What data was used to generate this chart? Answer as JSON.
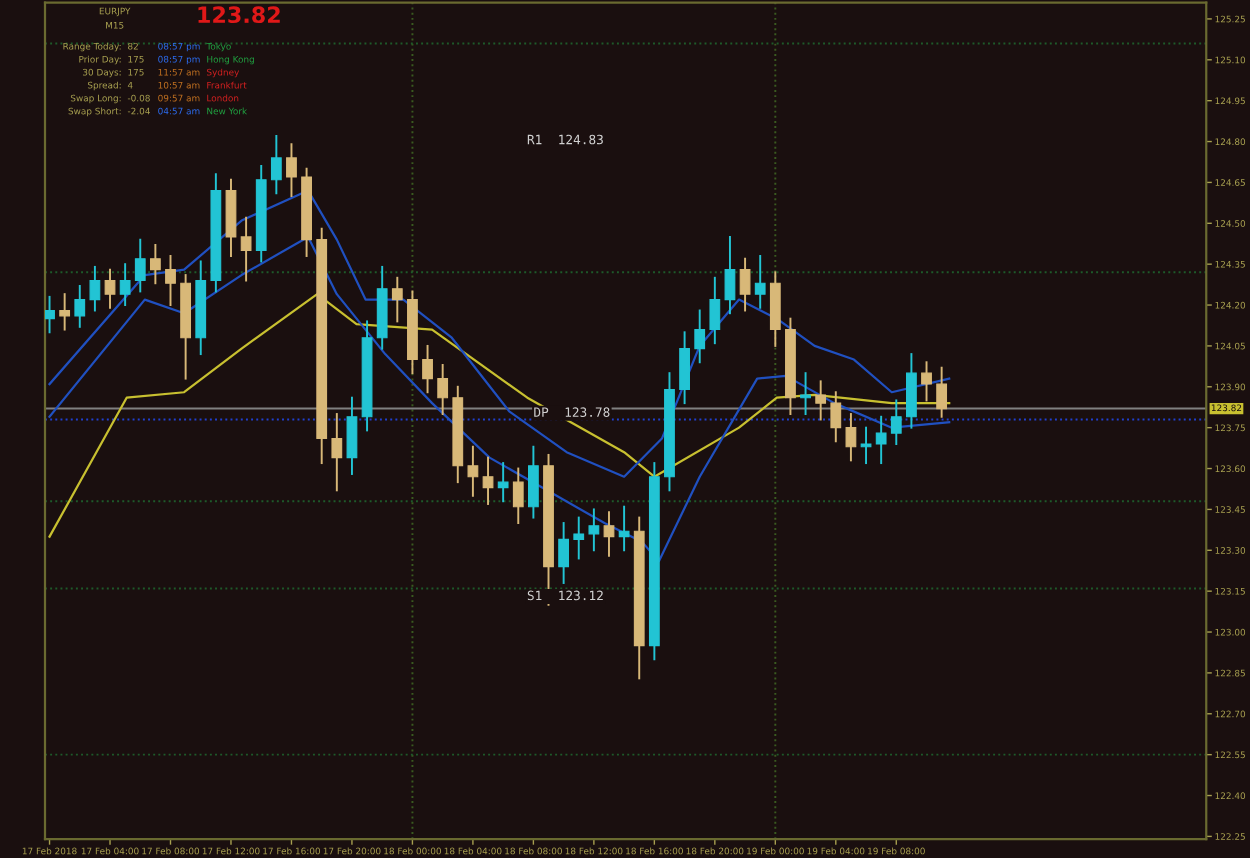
{
  "chart_data": {
    "type": "candlestick",
    "x": [
      "2018-02-17T00:00",
      "2018-02-17T01:00",
      "2018-02-17T02:00",
      "2018-02-17T03:00",
      "2018-02-17T04:00",
      "2018-02-17T05:00",
      "2018-02-17T06:00",
      "2018-02-17T07:00",
      "2018-02-17T08:00",
      "2018-02-17T09:00",
      "2018-02-17T10:00",
      "2018-02-17T11:00",
      "2018-02-17T12:00",
      "2018-02-17T13:00",
      "2018-02-17T14:00",
      "2018-02-17T15:00",
      "2018-02-17T16:00",
      "2018-02-17T17:00",
      "2018-02-17T18:00",
      "2018-02-17T19:00",
      "2018-02-17T20:00",
      "2018-02-17T21:00",
      "2018-02-17T22:00",
      "2018-02-17T23:00",
      "2018-02-18T00:00",
      "2018-02-18T01:00",
      "2018-02-18T02:00",
      "2018-02-18T03:00",
      "2018-02-18T04:00",
      "2018-02-18T05:00",
      "2018-02-18T06:00",
      "2018-02-18T07:00",
      "2018-02-18T08:00",
      "2018-02-18T09:00",
      "2018-02-18T10:00",
      "2018-02-18T11:00",
      "2018-02-18T12:00",
      "2018-02-18T13:00",
      "2018-02-18T14:00",
      "2018-02-18T15:00",
      "2018-02-18T16:00",
      "2018-02-18T17:00",
      "2018-02-18T18:00",
      "2018-02-18T19:00",
      "2018-02-18T20:00",
      "2018-02-18T21:00",
      "2018-02-18T22:00",
      "2018-02-18T23:00",
      "2018-02-19T00:00",
      "2018-02-19T01:00",
      "2018-02-19T02:00",
      "2018-02-19T03:00",
      "2018-02-19T04:00",
      "2018-02-19T05:00",
      "2018-02-19T06:00",
      "2018-02-19T07:00",
      "2018-02-19T08:00",
      "2018-02-19T09:00",
      "2018-02-19T10:00",
      "2018-02-19T11:00"
    ],
    "ohlc": [
      [
        124.15,
        124.23,
        124.1,
        124.18
      ],
      [
        124.18,
        124.24,
        124.11,
        124.16
      ],
      [
        124.16,
        124.27,
        124.12,
        124.22
      ],
      [
        124.22,
        124.34,
        124.18,
        124.29
      ],
      [
        124.29,
        124.33,
        124.19,
        124.24
      ],
      [
        124.24,
        124.35,
        124.2,
        124.29
      ],
      [
        124.29,
        124.44,
        124.25,
        124.37
      ],
      [
        124.37,
        124.42,
        124.28,
        124.33
      ],
      [
        124.33,
        124.38,
        124.2,
        124.28
      ],
      [
        124.28,
        124.31,
        123.93,
        124.08
      ],
      [
        124.08,
        124.36,
        124.02,
        124.29
      ],
      [
        124.29,
        124.68,
        124.25,
        124.62
      ],
      [
        124.62,
        124.66,
        124.38,
        124.45
      ],
      [
        124.45,
        124.52,
        124.29,
        124.4
      ],
      [
        124.4,
        124.71,
        124.36,
        124.66
      ],
      [
        124.66,
        124.82,
        124.61,
        124.74
      ],
      [
        124.74,
        124.79,
        124.6,
        124.67
      ],
      [
        124.67,
        124.7,
        124.38,
        124.44
      ],
      [
        124.44,
        124.48,
        123.62,
        123.71
      ],
      [
        123.71,
        123.8,
        123.52,
        123.64
      ],
      [
        123.64,
        123.86,
        123.58,
        123.79
      ],
      [
        123.79,
        124.14,
        123.74,
        124.08
      ],
      [
        124.08,
        124.34,
        124.04,
        124.26
      ],
      [
        124.26,
        124.3,
        124.14,
        124.22
      ],
      [
        124.22,
        124.25,
        123.95,
        124.0
      ],
      [
        124.0,
        124.05,
        123.88,
        123.93
      ],
      [
        123.93,
        123.98,
        123.8,
        123.86
      ],
      [
        123.86,
        123.9,
        123.55,
        123.61
      ],
      [
        123.61,
        123.68,
        123.5,
        123.57
      ],
      [
        123.57,
        123.64,
        123.47,
        123.53
      ],
      [
        123.53,
        123.62,
        123.48,
        123.55
      ],
      [
        123.55,
        123.6,
        123.4,
        123.46
      ],
      [
        123.46,
        123.68,
        123.42,
        123.61
      ],
      [
        123.61,
        123.65,
        123.1,
        123.24
      ],
      [
        123.24,
        123.4,
        123.18,
        123.34
      ],
      [
        123.34,
        123.42,
        123.27,
        123.36
      ],
      [
        123.36,
        123.45,
        123.3,
        123.39
      ],
      [
        123.39,
        123.44,
        123.28,
        123.35
      ],
      [
        123.35,
        123.46,
        123.3,
        123.37
      ],
      [
        123.37,
        123.42,
        122.83,
        122.95
      ],
      [
        122.95,
        123.62,
        122.9,
        123.57
      ],
      [
        123.57,
        123.95,
        123.52,
        123.89
      ],
      [
        123.89,
        124.1,
        123.84,
        124.04
      ],
      [
        124.04,
        124.18,
        123.99,
        124.11
      ],
      [
        124.11,
        124.3,
        124.06,
        124.22
      ],
      [
        124.22,
        124.45,
        124.17,
        124.33
      ],
      [
        124.33,
        124.37,
        124.18,
        124.24
      ],
      [
        124.24,
        124.38,
        124.19,
        124.28
      ],
      [
        124.28,
        124.32,
        124.05,
        124.11
      ],
      [
        124.11,
        124.15,
        123.8,
        123.86
      ],
      [
        123.86,
        123.95,
        123.8,
        123.87
      ],
      [
        123.87,
        123.92,
        123.78,
        123.84
      ],
      [
        123.84,
        123.88,
        123.7,
        123.75
      ],
      [
        123.75,
        123.8,
        123.63,
        123.68
      ],
      [
        123.68,
        123.75,
        123.62,
        123.69
      ],
      [
        123.69,
        123.79,
        123.62,
        123.73
      ],
      [
        123.73,
        123.85,
        123.69,
        123.79
      ],
      [
        123.79,
        124.02,
        123.75,
        123.95
      ],
      [
        123.95,
        123.99,
        123.85,
        123.91
      ],
      [
        123.91,
        123.97,
        123.79,
        123.82
      ]
    ],
    "colors": [
      "#22c4d4",
      "#d8b878",
      "#22c4d4",
      "#22c4d4",
      "#d8b878",
      "#22c4d4",
      "#22c4d4",
      "#d8b878",
      "#d8b878",
      "#d8b878",
      "#22c4d4",
      "#22c4d4",
      "#d8b878",
      "#d8b878",
      "#22c4d4",
      "#22c4d4",
      "#d8b878",
      "#d8b878",
      "#d8b878",
      "#d8b878",
      "#22c4d4",
      "#22c4d4",
      "#22c4d4",
      "#d8b878",
      "#d8b878",
      "#d8b878",
      "#d8b878",
      "#d8b878",
      "#d8b878",
      "#d8b878",
      "#22c4d4",
      "#d8b878",
      "#22c4d4",
      "#d8b878",
      "#22c4d4",
      "#22c4d4",
      "#22c4d4",
      "#d8b878",
      "#22c4d4",
      "#d8b878",
      "#22c4d4",
      "#22c4d4",
      "#22c4d4",
      "#22c4d4",
      "#22c4d4",
      "#22c4d4",
      "#d8b878",
      "#22c4d4",
      "#d8b878",
      "#d8b878",
      "#22c4d4",
      "#d8b878",
      "#d8b878",
      "#d8b878",
      "#22c4d4",
      "#22c4d4",
      "#22c4d4",
      "#22c4d4",
      "#d8b878",
      "#d8b878"
    ],
    "series": [
      {
        "type": "line",
        "color": "#c8c030",
        "x": [
          "2018-02-17T00:00",
          "2018-02-17T05:06",
          "2018-02-17T08:54",
          "2018-02-17T12:42",
          "2018-02-17T17:42",
          "2018-02-17T20:18",
          "2018-02-18T01:18",
          "2018-02-18T07:36",
          "2018-02-18T14:00",
          "2018-02-18T16:00",
          "2018-02-18T21:36",
          "2018-02-19T00:06",
          "2018-02-19T02:36",
          "2018-02-19T07:42",
          "2018-02-19T11:30"
        ],
        "values": [
          123.35,
          123.86,
          123.88,
          124.04,
          124.24,
          124.13,
          124.11,
          123.86,
          123.66,
          123.57,
          123.75,
          123.86,
          123.87,
          123.84,
          123.84
        ]
      },
      {
        "type": "line",
        "color": "#2050c0",
        "x": [
          "2018-02-17T00:00",
          "2018-02-17T06:18",
          "2018-02-17T08:54",
          "2018-02-17T12:42",
          "2018-02-17T17:06",
          "2018-02-17T19:00",
          "2018-02-17T20:54",
          "2018-02-17T23:24",
          "2018-02-18T02:36",
          "2018-02-18T06:24",
          "2018-02-18T10:12",
          "2018-02-18T14:00",
          "2018-02-18T16:30",
          "2018-02-18T19:00",
          "2018-02-18T21:36",
          "2018-02-19T00:06",
          "2018-02-19T02:36",
          "2018-02-19T05:12",
          "2018-02-19T07:42",
          "2018-02-19T11:30"
        ],
        "values": [
          123.91,
          124.31,
          124.33,
          124.51,
          124.62,
          124.44,
          124.22,
          124.22,
          124.08,
          123.81,
          123.66,
          123.57,
          123.71,
          124.05,
          124.22,
          124.15,
          124.05,
          124.0,
          123.88,
          123.93
        ]
      },
      {
        "type": "line",
        "color": "#2050c0",
        "x": [
          "2018-02-17T00:00",
          "2018-02-17T06:18",
          "2018-02-17T08:54",
          "2018-02-17T12:42",
          "2018-02-17T17:06",
          "2018-02-17T19:00",
          "2018-02-17T22:12",
          "2018-02-18T01:18",
          "2018-02-18T05:06",
          "2018-02-18T08:54",
          "2018-02-18T12:42",
          "2018-02-18T15:12",
          "2018-02-18T16:18",
          "2018-02-18T19:00",
          "2018-02-18T22:48",
          "2018-02-19T00:42",
          "2018-02-19T03:54",
          "2018-02-19T07:42",
          "2018-02-19T11:30"
        ],
        "values": [
          123.79,
          124.22,
          124.17,
          124.31,
          124.45,
          124.24,
          124.02,
          123.84,
          123.64,
          123.52,
          123.4,
          123.33,
          123.26,
          123.57,
          123.93,
          123.94,
          123.84,
          123.75,
          123.77
        ]
      }
    ],
    "xlim": [
      "2018-02-16T23:42",
      "2018-02-20T04:30"
    ],
    "ylim": [
      122.24,
      125.31
    ],
    "xticks": [
      {
        "value": "2018-02-17T00:00",
        "label": "17 Feb 2018"
      },
      {
        "value": "2018-02-17T04:00",
        "label": "17 Feb 04:00"
      },
      {
        "value": "2018-02-17T08:00",
        "label": "17 Feb 08:00"
      },
      {
        "value": "2018-02-17T12:00",
        "label": "17 Feb 12:00"
      },
      {
        "value": "2018-02-17T16:00",
        "label": "17 Feb 16:00"
      },
      {
        "value": "2018-02-17T20:00",
        "label": "17 Feb 20:00"
      },
      {
        "value": "2018-02-18T00:00",
        "label": "18 Feb 00:00"
      },
      {
        "value": "2018-02-18T04:00",
        "label": "18 Feb 04:00"
      },
      {
        "value": "2018-02-18T08:00",
        "label": "18 Feb 08:00"
      },
      {
        "value": "2018-02-18T12:00",
        "label": "18 Feb 12:00"
      },
      {
        "value": "2018-02-18T16:00",
        "label": "18 Feb 16:00"
      },
      {
        "value": "2018-02-18T20:00",
        "label": "18 Feb 20:00"
      },
      {
        "value": "2018-02-19T00:00",
        "label": "19 Feb 00:00"
      },
      {
        "value": "2018-02-19T04:00",
        "label": "19 Feb 04:00"
      },
      {
        "value": "2018-02-19T08:00",
        "label": "19 Feb 08:00"
      }
    ],
    "yticks": [
      125.25,
      {
        "value": 125.1,
        "label": "125.10"
      },
      124.95,
      {
        "value": 124.8,
        "label": "124.80"
      },
      124.65,
      {
        "value": 124.5,
        "label": "124.50"
      },
      124.35,
      {
        "value": 124.2,
        "label": "124.20"
      },
      124.05,
      {
        "value": 123.9,
        "label": "123.90"
      },
      123.75,
      {
        "value": 123.6,
        "label": "123.60"
      },
      123.45,
      {
        "value": 123.3,
        "label": "123.30"
      },
      123.15,
      {
        "value": 123.0,
        "label": "123.00"
      },
      122.85,
      {
        "value": 122.7,
        "label": "122.70"
      },
      122.55,
      {
        "value": 122.4,
        "label": "122.40"
      },
      122.25
    ],
    "ref_lines": [
      {
        "axis": "y",
        "value": 123.82,
        "label": "123.82",
        "color": "#808080",
        "line_style": "solid"
      },
      {
        "axis": "y",
        "value": 123.78,
        "color": "#2040d0",
        "line_style": "dotted"
      },
      {
        "axis": "y",
        "value": 125.16,
        "color": "#1e5a2a",
        "line_style": "dotted"
      },
      {
        "axis": "y",
        "value": 124.32,
        "color": "#1e5a2a",
        "line_style": "dotted"
      },
      {
        "axis": "y",
        "value": 123.48,
        "color": "#1e5a2a",
        "line_style": "dotted"
      },
      {
        "axis": "y",
        "value": 123.16,
        "color": "#1e5a2a",
        "line_style": "dotted"
      },
      {
        "axis": "y",
        "value": 122.55,
        "color": "#1e5a2a",
        "line_style": "dotted"
      },
      {
        "axis": "x",
        "value": "2018-02-18T00:00",
        "color": "#3a5a20",
        "line_style": "dotted"
      },
      {
        "axis": "x",
        "value": "2018-02-19T00:00",
        "color": "#3a5a20",
        "line_style": "dotted"
      }
    ],
    "annotations": [
      "R1  124.83",
      {
        "text": "DP  123.78",
        "x": "2018-02-18T08:00",
        "y": 123.78
      },
      "S1  123.12",
      "EURJPY",
      "M15",
      "123.82",
      "Range Today:",
      "82",
      "08:57 pm",
      "Tokyo",
      "Prior Day:",
      "175",
      "08:57 pm",
      "Hong Kong",
      "30 Days:",
      "175",
      "11:57 am",
      "Sydney",
      "Spread:",
      "4",
      "10:57 am",
      "Frankfurt",
      "Swap Long:",
      "-0.08",
      "09:57 am",
      "London",
      "Swap Short:",
      "-2.04",
      "04:57 am",
      "New York"
    ]
  }
}
